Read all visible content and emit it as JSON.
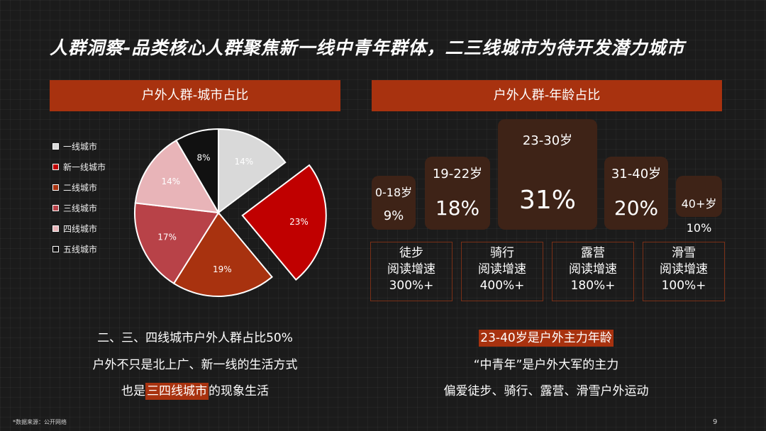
{
  "title": "人群洞察-品类核心人群聚焦新一线中青年群体，二三线城市为待开发潜力城市",
  "left_panel": {
    "header": "户外人群-城市占比",
    "legend": [
      {
        "label": "一线城市",
        "color": "#d9d9d9"
      },
      {
        "label": "新一线城市",
        "color": "#c00000"
      },
      {
        "label": "二线城市",
        "color": "#a8320f"
      },
      {
        "label": "三线城市",
        "color": "#b84248"
      },
      {
        "label": "四线城市",
        "color": "#e8b4b8"
      },
      {
        "label": "五线城市",
        "color": "#111111"
      }
    ],
    "statement_line1": "二、三、四线城市户外人群占比50%",
    "statement_line2": "户外不只是北上广、新一线的生活方式",
    "statement_line3_pre": "也是",
    "statement_line3_hl": "三四线城市",
    "statement_line3_post": "的现象生活"
  },
  "chart_data": {
    "type": "pie",
    "categories": [
      "一线城市",
      "新一线城市",
      "二线城市",
      "三线城市",
      "四线城市",
      "五线城市"
    ],
    "values": [
      14,
      23,
      19,
      17,
      14,
      8
    ],
    "labels": [
      "14%",
      "23%",
      "19%",
      "17%",
      "14%",
      "8%"
    ],
    "colors": [
      "#d9d9d9",
      "#c00000",
      "#a8320f",
      "#b84248",
      "#e8b4b8",
      "#111111"
    ],
    "exploded": "新一线城市"
  },
  "right_panel": {
    "header": "户外人群-年龄占比",
    "ages": [
      {
        "label": "0-18岁",
        "value": "9%"
      },
      {
        "label": "19-22岁",
        "value": "18%"
      },
      {
        "label": "23-30岁",
        "value": "31%"
      },
      {
        "label": "31-40岁",
        "value": "20%"
      },
      {
        "label": "40+岁",
        "value": "10%"
      }
    ],
    "activities": [
      {
        "name": "徒步",
        "desc": "阅读增速",
        "growth": "300%+"
      },
      {
        "name": "骑行",
        "desc": "阅读增速",
        "growth": "400%+"
      },
      {
        "name": "露营",
        "desc": "阅读增速",
        "growth": "180%+"
      },
      {
        "name": "滑雪",
        "desc": "阅读增速",
        "growth": "100%+"
      }
    ],
    "statement_hl": "23-40岁是户外主力年龄",
    "statement_line2": "“中青年”是户外大军的主力",
    "statement_line3": "偏爱徒步、骑行、露营、滑雪户外运动"
  },
  "footnote": "*数据来源：公开网络",
  "page_number": "9"
}
